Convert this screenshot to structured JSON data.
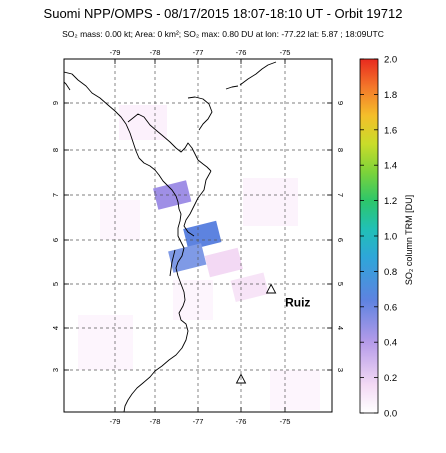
{
  "header": {
    "title": "Suomi NPP/OMPS - 08/17/2015 18:07-18:10 UT - Orbit 19712",
    "subtitle": "SO₂ mass: 0.00 kt; Area: 0 km²; SO₂ max: 0.80 DU at lon: -77.22 lat: 5.87 ; 18:09UTC"
  },
  "map": {
    "lon_range": [
      -80,
      -73
    ],
    "lat_range": [
      1,
      10
    ],
    "lon_ticks": [
      "-79",
      "-78",
      "-77",
      "-76",
      "-75"
    ],
    "lat_ticks": [
      "9",
      "8",
      "7",
      "6",
      "5",
      "4",
      "3"
    ],
    "volcanoes": [
      {
        "name": "Ruiz",
        "lon": -75.3,
        "lat": 4.9
      },
      {
        "name": "",
        "lon": -76.0,
        "lat": 2.9
      }
    ],
    "so2_pixels": [
      {
        "lon": -77.6,
        "lat": 7.0,
        "value": 0.35
      },
      {
        "lon": -76.9,
        "lat": 6.1,
        "value": 0.8
      },
      {
        "lon": -77.25,
        "lat": 5.6,
        "value": 0.6
      },
      {
        "lon": -76.4,
        "lat": 5.5,
        "value": 0.15
      },
      {
        "lon": -75.8,
        "lat": 4.95,
        "value": 0.12
      }
    ]
  },
  "colorbar": {
    "label": "SO₂ column TRM [DU]",
    "ticks": [
      "2.0",
      "1.8",
      "1.6",
      "1.4",
      "1.2",
      "1.0",
      "0.8",
      "0.6",
      "0.4",
      "0.2",
      "0.0"
    ],
    "range": [
      0,
      2
    ]
  }
}
